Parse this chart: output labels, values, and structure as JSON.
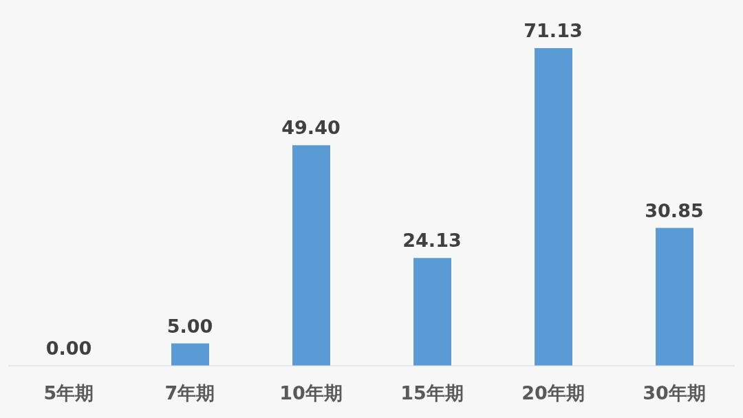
{
  "chart_data": {
    "type": "bar",
    "categories": [
      "5年期",
      "7年期",
      "10年期",
      "15年期",
      "20年期",
      "30年期"
    ],
    "values": [
      0,
      5,
      49.4,
      24.13,
      71.13,
      30.85
    ],
    "value_labels": [
      "0.00",
      "5.00",
      "49.40",
      "24.13",
      "71.13",
      "30.85"
    ],
    "color": "#5b9bd5"
  }
}
